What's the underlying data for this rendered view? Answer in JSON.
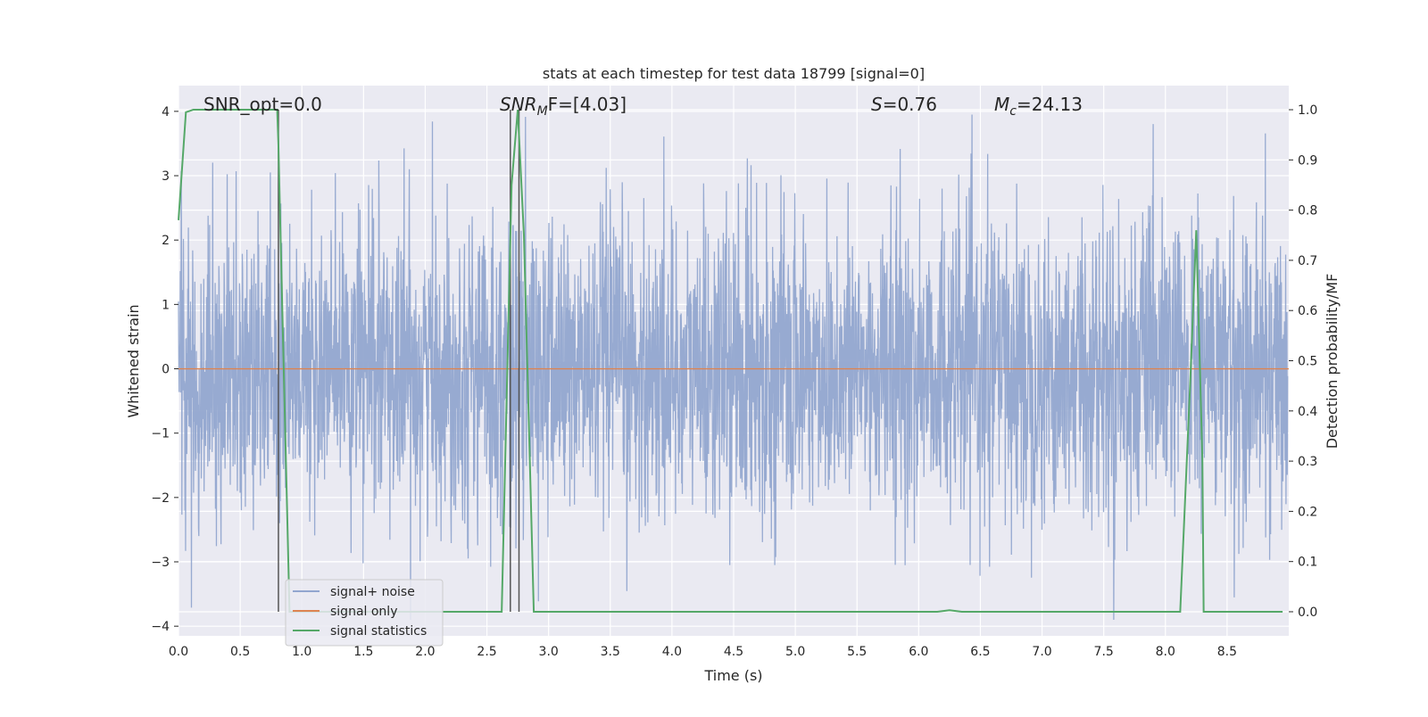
{
  "chart_data": {
    "type": "line",
    "title": "stats at each timestep for test data 18799 [signal=0]",
    "xlabel": "Time (s)",
    "ylabel": "Whitened strain",
    "ylabel_right": "Detection probability/MF",
    "xlim": [
      0.0,
      9.0
    ],
    "ylim": [
      -4.15,
      4.4
    ],
    "ylim_right": [
      -0.048,
      1.048
    ],
    "xticks": [
      "0.0",
      "0.5",
      "1.0",
      "1.5",
      "2.0",
      "2.5",
      "3.0",
      "3.5",
      "4.0",
      "4.5",
      "5.0",
      "5.5",
      "6.0",
      "6.5",
      "7.0",
      "7.5",
      "8.0",
      "8.5"
    ],
    "yticks": [
      "−4",
      "−3",
      "−2",
      "−1",
      "0",
      "1",
      "2",
      "3",
      "4"
    ],
    "yticks_right": [
      "0.0",
      "0.1",
      "0.2",
      "0.3",
      "0.4",
      "0.5",
      "0.6",
      "0.7",
      "0.8",
      "0.9",
      "1.0"
    ],
    "grid": true,
    "legend_position": "lower-left",
    "annotations": {
      "snr_opt": "SNR_opt=0.0",
      "snr_mf_label": "SNR",
      "snr_mf_sub": "M",
      "snr_mf_rest": "F=[4.03]",
      "s_label": "S",
      "s_rest": "=0.76",
      "mc_label": "M",
      "mc_sub": "c",
      "mc_rest": "=24.13"
    },
    "series": [
      {
        "name": "signal+ noise",
        "color": "#92a6cf",
        "axis": "left",
        "description_values": "dense Gaussian-like noise, core amplitude about ±1.5, spikes up to about ±4"
      },
      {
        "name": "signal only",
        "color": "#dd8452",
        "axis": "left",
        "x": [
          0.0,
          9.0
        ],
        "values": [
          0.0,
          0.0
        ]
      },
      {
        "name": "signal statistics",
        "color": "#55a868",
        "axis": "right",
        "x": [
          0.0,
          0.06,
          0.12,
          0.2,
          0.4,
          0.6,
          0.7,
          0.8,
          0.81,
          0.83,
          0.9,
          1.0,
          1.5,
          2.0,
          2.5,
          2.62,
          2.7,
          2.75,
          2.8,
          2.88,
          3.0,
          4.0,
          5.0,
          6.0,
          6.15,
          6.25,
          6.35,
          7.0,
          8.0,
          8.12,
          8.2,
          8.25,
          8.3,
          8.31,
          8.5,
          8.95
        ],
        "values": [
          0.78,
          0.995,
          1.0,
          1.0,
          1.0,
          1.0,
          1.0,
          1.0,
          0.93,
          0.72,
          0.0,
          0.0,
          0.0,
          0.0,
          0.0,
          0.0,
          0.85,
          1.0,
          0.75,
          0.0,
          0.0,
          0.0,
          0.0,
          0.0,
          0.0,
          0.003,
          0.0,
          0.0,
          0.0,
          0.0,
          0.45,
          0.76,
          0.3,
          0.0,
          0.0,
          0.0
        ]
      }
    ],
    "vertical_lines_x": [
      0.81,
      2.69,
      2.76
    ],
    "colors": {
      "axes_bg": "#eaeaf2",
      "grid": "#ffffff",
      "vline": "#555555",
      "text": "#262626"
    }
  }
}
